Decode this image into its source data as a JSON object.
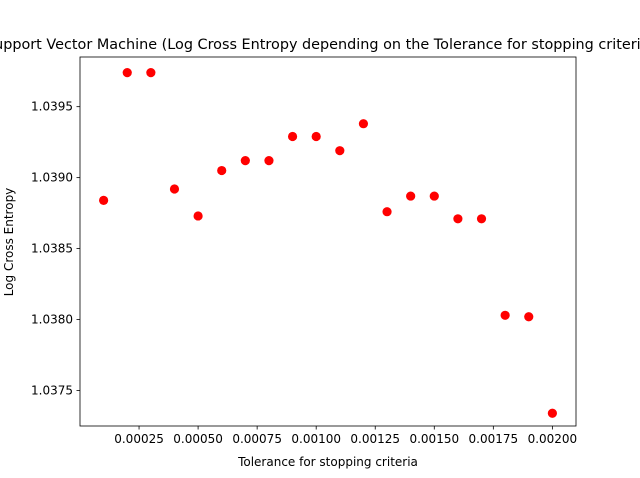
{
  "chart_data": {
    "type": "scatter",
    "title": "Support Vector Machine (Log Cross Entropy depending on the Tolerance for stopping criteria)",
    "xlabel": "Tolerance for stopping criteria",
    "ylabel": "Log Cross Entropy",
    "xlim": [
      0.0,
      0.0021
    ],
    "ylim": [
      1.03725,
      1.03985
    ],
    "xticks": [
      0.00025,
      0.0005,
      0.00075,
      0.001,
      0.00125,
      0.0015,
      0.00175,
      0.002
    ],
    "xtick_labels": [
      "0.00025",
      "0.00050",
      "0.00075",
      "0.00100",
      "0.00125",
      "0.00150",
      "0.00175",
      "0.00200"
    ],
    "yticks": [
      1.0375,
      1.038,
      1.0385,
      1.039,
      1.0395
    ],
    "ytick_labels": [
      "1.0375",
      "1.0380",
      "1.0385",
      "1.0390",
      "1.0395"
    ],
    "grid": false,
    "legend": false,
    "marker_color": "#ff0000",
    "series": [
      {
        "x": [
          0.0001,
          0.0002,
          0.0003,
          0.0004,
          0.0005,
          0.0006,
          0.0007,
          0.0008,
          0.0009,
          0.001,
          0.0011,
          0.0012,
          0.0013,
          0.0014,
          0.0015,
          0.0016,
          0.0017,
          0.0018,
          0.0019,
          0.002
        ],
        "y": [
          1.03884,
          1.03974,
          1.03974,
          1.03892,
          1.03873,
          1.03905,
          1.03912,
          1.03912,
          1.03929,
          1.03929,
          1.03919,
          1.03938,
          1.03876,
          1.03887,
          1.03887,
          1.03871,
          1.03871,
          1.03803,
          1.03802,
          1.03734
        ]
      }
    ]
  }
}
